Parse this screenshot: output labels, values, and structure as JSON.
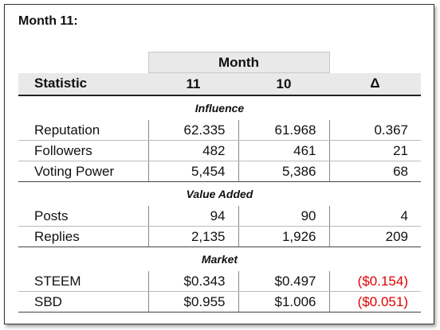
{
  "title": "Month 11:",
  "table": {
    "group_header": "Month",
    "columns": [
      "Statistic",
      "11",
      "10",
      "Δ"
    ],
    "sections": [
      {
        "name": "Influence",
        "rows": [
          [
            "Reputation",
            "62.335",
            "61.968",
            "0.367"
          ],
          [
            "Followers",
            "482",
            "461",
            "21"
          ],
          [
            "Voting Power",
            "5,454",
            "5,386",
            "68"
          ]
        ]
      },
      {
        "name": "Value Added",
        "rows": [
          [
            "Posts",
            "94",
            "90",
            "4"
          ],
          [
            "Replies",
            "2,135",
            "1,926",
            "209"
          ]
        ]
      },
      {
        "name": "Market",
        "rows": [
          [
            "STEEM",
            "$0.343",
            "$0.497",
            "($0.154)"
          ],
          [
            "SBD",
            "$0.955",
            "$1.006",
            "($0.051)"
          ]
        ]
      }
    ]
  }
}
